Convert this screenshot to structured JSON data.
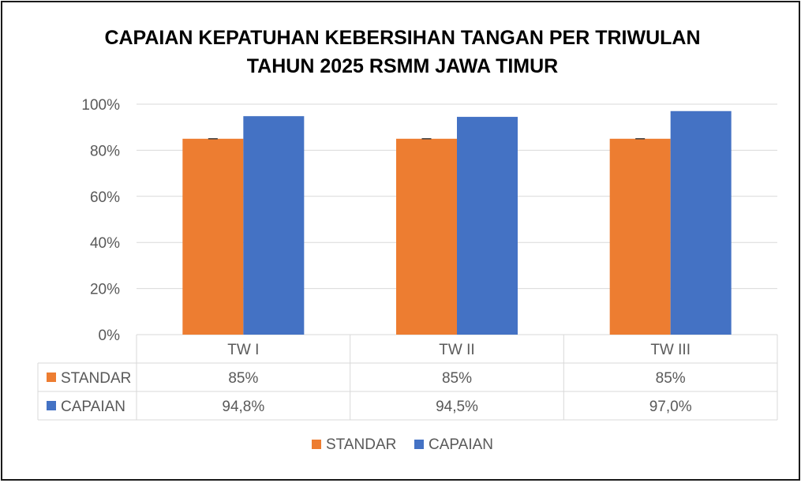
{
  "chart_data": {
    "type": "bar",
    "title_lines": [
      "CAPAIAN KEPATUHAN KEBERSIHAN TANGAN PER TRIWULAN",
      "TAHUN 2025 RSMM JAWA TIMUR"
    ],
    "categories": [
      "TW I",
      "TW II",
      "TW III"
    ],
    "series": [
      {
        "name": "STANDAR",
        "values": [
          85,
          85,
          85
        ],
        "labels": [
          "85%",
          "85%",
          "85%"
        ],
        "color": "#ED7D31"
      },
      {
        "name": "CAPAIAN",
        "values": [
          94.8,
          94.5,
          97.0
        ],
        "labels": [
          "94,8%",
          "94,5%",
          "97,0%"
        ],
        "color": "#4472C4"
      }
    ],
    "ylim": [
      0,
      100
    ],
    "yticks": [
      0,
      20,
      40,
      60,
      80,
      100
    ],
    "ytick_labels": [
      "0%",
      "20%",
      "40%",
      "60%",
      "80%",
      "100%"
    ],
    "grid": true,
    "data_table": true,
    "legend": {
      "position": "bottom",
      "items": [
        "STANDAR",
        "CAPAIAN"
      ]
    }
  }
}
